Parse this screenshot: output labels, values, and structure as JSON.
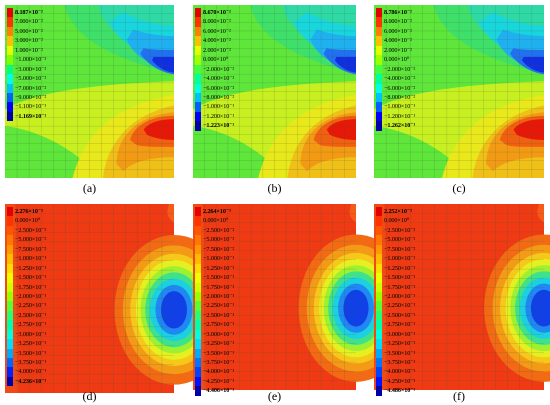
{
  "figure": {
    "background": "#ffffff",
    "grid_color": "#3f5a3f",
    "panels": [
      {
        "id": "a",
        "caption": "(a)",
        "field": "top",
        "legend": {
          "labels": [
            "8.187×10⁻²",
            "7.000×10⁻²",
            "5.000×10⁻²",
            "3.000×10⁻²",
            "1.000×10⁻²",
            "−1.000×10⁻²",
            "−3.000×10⁻²",
            "−5.000×10⁻²",
            "−7.000×10⁻²",
            "−9.000×10⁻²",
            "−1.100×10⁻¹",
            "−1.169×10⁻¹"
          ],
          "colors": [
            "#e50000",
            "#ff3300",
            "#ff8000",
            "#ffbf00",
            "#e6ff00",
            "#80ff00",
            "#00ff80",
            "#00ffe6",
            "#00bfff",
            "#0060ff",
            "#0000ff",
            "#0000aa"
          ]
        }
      },
      {
        "id": "b",
        "caption": "(b)",
        "field": "top",
        "legend": {
          "labels": [
            "8.670×10⁻²",
            "8.000×10⁻²",
            "6.000×10⁻²",
            "4.000×10⁻²",
            "2.000×10⁻²",
            "0.000×10⁰",
            "−2.000×10⁻²",
            "−4.000×10⁻²",
            "−6.000×10⁻²",
            "−8.000×10⁻²",
            "−1.000×10⁻¹",
            "−1.200×10⁻¹",
            "−1.223×10⁻¹"
          ],
          "colors": [
            "#e50000",
            "#ff3300",
            "#ff8000",
            "#ffbf00",
            "#e6ff00",
            "#a0ff00",
            "#40ff40",
            "#00ffa0",
            "#00ffe6",
            "#00bfff",
            "#0060ff",
            "#0000ff",
            "#0000aa"
          ]
        }
      },
      {
        "id": "c",
        "caption": "(c)",
        "field": "top",
        "legend": {
          "labels": [
            "8.786×10⁻²",
            "8.000×10⁻²",
            "6.000×10⁻²",
            "4.000×10⁻²",
            "2.000×10⁻²",
            "0.000×10⁰",
            "−2.000×10⁻²",
            "−4.000×10⁻²",
            "−6.000×10⁻²",
            "−8.000×10⁻²",
            "−1.000×10⁻¹",
            "−1.200×10⁻¹",
            "−1.262×10⁻¹"
          ],
          "colors": [
            "#e50000",
            "#ff3300",
            "#ff8000",
            "#ffbf00",
            "#e6ff00",
            "#a0ff00",
            "#40ff40",
            "#00ffa0",
            "#00ffe6",
            "#00bfff",
            "#0060ff",
            "#0000ff",
            "#0000aa"
          ]
        }
      },
      {
        "id": "d",
        "caption": "(d)",
        "field": "bottom",
        "legend": {
          "labels": [
            "2.276×10⁻³",
            "0.000×10⁰",
            "−2.500×10⁻²",
            "−5.000×10⁻²",
            "−7.500×10⁻²",
            "−1.000×10⁻¹",
            "−1.250×10⁻¹",
            "−1.500×10⁻¹",
            "−1.750×10⁻¹",
            "−2.000×10⁻¹",
            "−2.250×10⁻¹",
            "−2.500×10⁻¹",
            "−2.750×10⁻¹",
            "−3.000×10⁻¹",
            "−3.250×10⁻¹",
            "−3.500×10⁻¹",
            "−3.750×10⁻¹",
            "−4.000×10⁻¹",
            "−4.236×10⁻¹"
          ],
          "colors": [
            "#e50000",
            "#ff3300",
            "#ff5500",
            "#ff7700",
            "#ff9900",
            "#ffbb00",
            "#ffdd00",
            "#eeff00",
            "#ccff00",
            "#99ff00",
            "#55ff33",
            "#22ff77",
            "#00ffaa",
            "#00ffdd",
            "#00ddff",
            "#00aaff",
            "#0066ff",
            "#0022ff",
            "#0000aa"
          ]
        }
      },
      {
        "id": "e",
        "caption": "(e)",
        "field": "bottom",
        "legend": {
          "labels": [
            "2.264×10⁻³",
            "0.000×10⁰",
            "−2.500×10⁻²",
            "−5.000×10⁻²",
            "−7.500×10⁻²",
            "−1.000×10⁻¹",
            "−1.250×10⁻¹",
            "−1.500×10⁻¹",
            "−1.750×10⁻¹",
            "−2.000×10⁻¹",
            "−2.250×10⁻¹",
            "−2.500×10⁻¹",
            "−2.750×10⁻¹",
            "−3.000×10⁻¹",
            "−3.250×10⁻¹",
            "−3.500×10⁻¹",
            "−3.750×10⁻¹",
            "−4.000×10⁻¹",
            "−4.250×10⁻¹",
            "−4.406×10⁻¹"
          ],
          "colors": [
            "#e50000",
            "#ff3300",
            "#ff5500",
            "#ff7700",
            "#ff9900",
            "#ffbb00",
            "#ffdd00",
            "#eeff00",
            "#ccff00",
            "#99ff00",
            "#55ff33",
            "#22ff77",
            "#00ffaa",
            "#00ffdd",
            "#00ddff",
            "#00aaff",
            "#0077ff",
            "#0044ff",
            "#0011ff",
            "#0000aa"
          ]
        }
      },
      {
        "id": "f",
        "caption": "(f)",
        "field": "bottom",
        "legend": {
          "labels": [
            "2.252×10⁻³",
            "0.000×10⁰",
            "−2.500×10⁻²",
            "−5.000×10⁻²",
            "−7.500×10⁻²",
            "−1.000×10⁻¹",
            "−1.250×10⁻¹",
            "−1.500×10⁻¹",
            "−1.750×10⁻¹",
            "−2.000×10⁻¹",
            "−2.250×10⁻¹",
            "−2.500×10⁻¹",
            "−2.750×10⁻¹",
            "−3.000×10⁻¹",
            "−3.250×10⁻¹",
            "−3.500×10⁻¹",
            "−3.750×10⁻¹",
            "−4.000×10⁻¹",
            "−4.250×10⁻¹",
            "−4.486×10⁻¹"
          ],
          "colors": [
            "#e50000",
            "#ff3300",
            "#ff5500",
            "#ff7700",
            "#ff9900",
            "#ffbb00",
            "#ffdd00",
            "#eeff00",
            "#ccff00",
            "#99ff00",
            "#55ff33",
            "#22ff77",
            "#00ffaa",
            "#00ffdd",
            "#00ddff",
            "#00aaff",
            "#0077ff",
            "#0044ff",
            "#0011ff",
            "#0000aa"
          ]
        }
      }
    ]
  }
}
